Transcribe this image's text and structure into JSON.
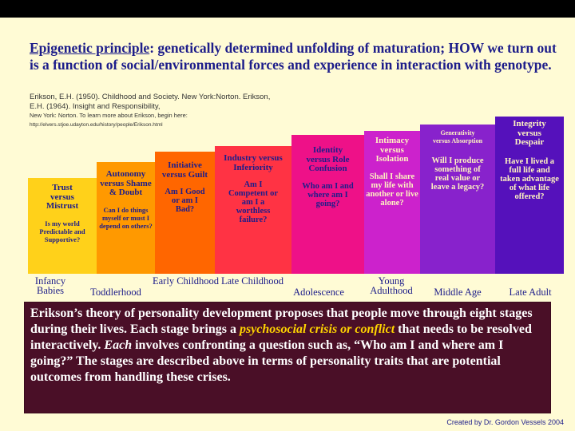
{
  "title": {
    "lead": "Epigenetic principle",
    "rest": ": genetically determined unfolding of maturation; HOW we turn out is a function of social/environmental forces and experience in interaction with genotype."
  },
  "references": {
    "line1": "Erikson, E.H. (1950). Childhood and Society. New York:Norton. Erikson, E.H. (1964). Insight and Responsibility,",
    "line2": "New York: Norton.  To learn more about Erikson, begin here:",
    "line3": "http://elvers.stjoe.udayton.edu/history/people/Erikson.html"
  },
  "stages": [
    {
      "title": "Trust versus Mistrust",
      "detail": "Is my world Predictable and Supportive?",
      "label": "Infancy Babies",
      "color": "#ffd11a"
    },
    {
      "title": "Autonomy versus Shame & Doubt",
      "detail": "Can I do things myself or must I depend on others?",
      "label": "Toddlerhood",
      "color": "#ff9900"
    },
    {
      "title": "Initiative versus Guilt",
      "detail": "Am I Good or am I Bad?",
      "label": "Early Childhood",
      "color": "#ff6600"
    },
    {
      "title": "Industry versus Inferiority",
      "detail": "Am I Competent or am I a worthless failure?",
      "label": "Late Childhood",
      "color": "#ff3344"
    },
    {
      "title": "Identity versus Role Confusion",
      "detail": "Who am I and where am I going?",
      "label": "Adolescence",
      "color": "#ee1188"
    },
    {
      "title": "Intimacy versus Isolation",
      "detail": "Shall I share my life with another or live alone?",
      "label": "Young Adulthood",
      "color": "#cc22cc"
    },
    {
      "title": "Generativity versus Absorption",
      "detail": "Will I produce something of real value or leave a legacy?",
      "label": "Middle Age",
      "color": "#8822cc"
    },
    {
      "title": "Integrity versus Despair",
      "detail": "Have I lived a full life and taken advantage of what life offered?",
      "label": "Late Adult",
      "color": "#5511bb"
    }
  ],
  "summary": {
    "p1": "Erikson’s theory of personality development proposes that people move through eight stages during their lives.   Each stage brings a ",
    "highlight": "psychosocial crisis or conflict",
    "p2": " that needs to be resolved interactively.  ",
    "each": "Each",
    "p3": " involves confronting a question such as, “Who am I and where am I going?”  The stages are described above in terms of personality traits that are potential outcomes from handling these crises."
  },
  "credit": "Created by Dr. Gordon Vessels 2004"
}
